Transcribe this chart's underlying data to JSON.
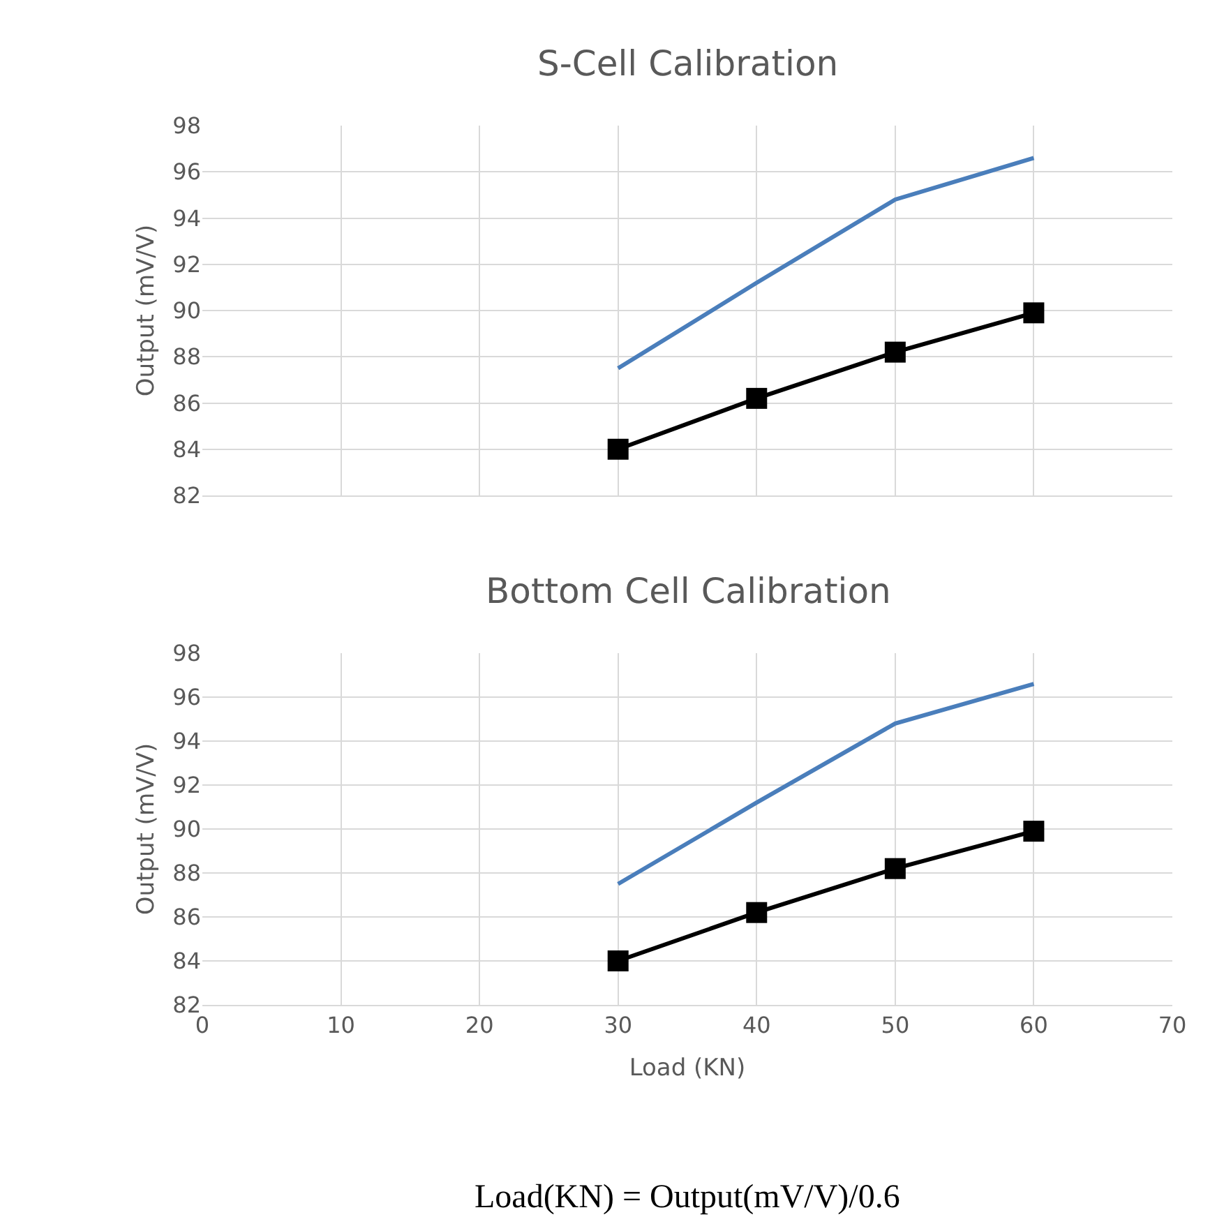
{
  "chart_data": [
    {
      "type": "line",
      "title": "S-Cell Calibration",
      "ylabel": "Output (mV/V)",
      "x": [
        30,
        40,
        50,
        60
      ],
      "series": [
        {
          "color": "#4a7ebb",
          "values": [
            87.5,
            91.2,
            94.8,
            96.6
          ],
          "marker": "none"
        },
        {
          "color": "#000000",
          "values": [
            84.0,
            86.2,
            88.2,
            89.9
          ],
          "marker": "square"
        }
      ],
      "xlim": [
        0,
        70
      ],
      "xticks": [
        0,
        10,
        20,
        30,
        40,
        50,
        60,
        70
      ],
      "ylim": [
        82,
        98
      ],
      "yticks": [
        82,
        84,
        86,
        88,
        90,
        92,
        94,
        96,
        98
      ],
      "grid": true,
      "tick_labels": "y"
    },
    {
      "type": "line",
      "title": "Bottom Cell Calibration",
      "xlabel": "Load (KN)",
      "ylabel": "Output (mV/V)",
      "x": [
        30,
        40,
        50,
        60
      ],
      "series": [
        {
          "color": "#4a7ebb",
          "values": [
            87.5,
            91.2,
            94.8,
            96.6
          ],
          "marker": "none"
        },
        {
          "color": "#000000",
          "values": [
            84.0,
            86.2,
            88.2,
            89.9
          ],
          "marker": "square"
        }
      ],
      "xlim": [
        0,
        70
      ],
      "xticks": [
        0,
        10,
        20,
        30,
        40,
        50,
        60,
        70
      ],
      "ylim": [
        82,
        98
      ],
      "yticks": [
        82,
        84,
        86,
        88,
        90,
        92,
        94,
        96,
        98
      ],
      "grid": true,
      "annotations": [
        "Load(KN) = Output(mV/V)/0.6"
      ]
    }
  ]
}
